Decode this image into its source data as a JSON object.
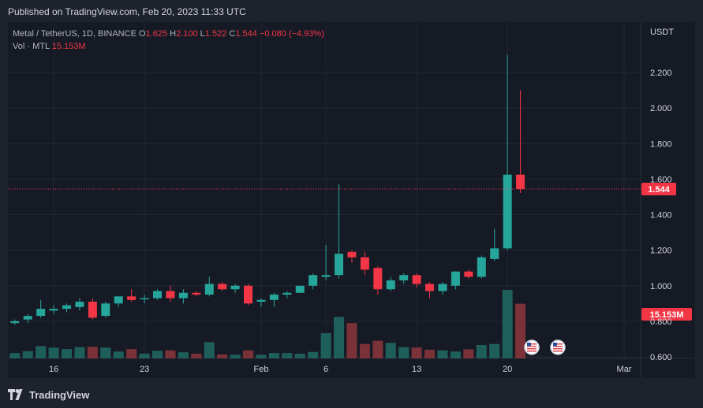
{
  "header": {
    "published_text": "Published on TradingView.com, Feb 20, 2023 11:33 UTC"
  },
  "legend": {
    "title": "Metal / TetherUS, 1D, BINANCE",
    "open_label": "O",
    "open": "1.625",
    "high_label": "H",
    "high": "2.100",
    "low_label": "L",
    "low": "1.522",
    "close_label": "C",
    "close": "1.544",
    "change": "−0.080 (−4.93%)",
    "vol_label": "Vol · MTL",
    "vol_value": "15.153M"
  },
  "footer": {
    "brand": "TradingView"
  },
  "colors": {
    "up": "#26a69a",
    "down": "#f23645",
    "up_vol": "#1f5f5b",
    "down_vol": "#7a3238",
    "grid": "#232733",
    "axis_text": "#d1d4dc"
  },
  "chart_data": {
    "type": "candlestick",
    "symbol": "Metal / TetherUS",
    "interval": "1D",
    "exchange": "BINANCE",
    "currency": "USDT",
    "ylim": [
      0.6,
      2.35
    ],
    "y_ticks": [
      "2.200",
      "2.000",
      "1.800",
      "1.600",
      "1.400",
      "1.200",
      "1.000",
      "0.800",
      "0.600"
    ],
    "x_ticks": [
      {
        "label": "16",
        "index": 3
      },
      {
        "label": "23",
        "index": 10
      },
      {
        "label": "Feb",
        "index": 19
      },
      {
        "label": "6",
        "index": 24
      },
      {
        "label": "13",
        "index": 31
      },
      {
        "label": "20",
        "index": 38
      },
      {
        "label": "Mar",
        "index": 47
      }
    ],
    "last_price": "1.544",
    "last_volume": "15.153M",
    "volume_max": 19.0,
    "candles": [
      {
        "o": 0.79,
        "h": 0.81,
        "l": 0.78,
        "c": 0.8,
        "v": 1.5
      },
      {
        "o": 0.81,
        "h": 0.84,
        "l": 0.79,
        "c": 0.83,
        "v": 2.0
      },
      {
        "o": 0.83,
        "h": 0.92,
        "l": 0.82,
        "c": 0.87,
        "v": 3.4
      },
      {
        "o": 0.86,
        "h": 0.89,
        "l": 0.84,
        "c": 0.87,
        "v": 3.0
      },
      {
        "o": 0.87,
        "h": 0.9,
        "l": 0.85,
        "c": 0.89,
        "v": 2.6
      },
      {
        "o": 0.88,
        "h": 0.93,
        "l": 0.86,
        "c": 0.91,
        "v": 3.1
      },
      {
        "o": 0.91,
        "h": 0.93,
        "l": 0.81,
        "c": 0.82,
        "v": 3.2
      },
      {
        "o": 0.83,
        "h": 0.91,
        "l": 0.82,
        "c": 0.9,
        "v": 3.0
      },
      {
        "o": 0.9,
        "h": 0.94,
        "l": 0.88,
        "c": 0.94,
        "v": 1.9
      },
      {
        "o": 0.94,
        "h": 0.98,
        "l": 0.91,
        "c": 0.92,
        "v": 2.6
      },
      {
        "o": 0.93,
        "h": 0.95,
        "l": 0.9,
        "c": 0.93,
        "v": 1.3
      },
      {
        "o": 0.93,
        "h": 0.98,
        "l": 0.92,
        "c": 0.97,
        "v": 2.1
      },
      {
        "o": 0.97,
        "h": 1.0,
        "l": 0.91,
        "c": 0.93,
        "v": 2.2
      },
      {
        "o": 0.93,
        "h": 0.98,
        "l": 0.9,
        "c": 0.96,
        "v": 1.7
      },
      {
        "o": 0.96,
        "h": 0.97,
        "l": 0.94,
        "c": 0.95,
        "v": 1.3
      },
      {
        "o": 0.95,
        "h": 1.05,
        "l": 0.94,
        "c": 1.01,
        "v": 4.5
      },
      {
        "o": 1.01,
        "h": 1.02,
        "l": 0.97,
        "c": 0.98,
        "v": 1.1
      },
      {
        "o": 0.98,
        "h": 1.01,
        "l": 0.96,
        "c": 1.0,
        "v": 1.0
      },
      {
        "o": 1.0,
        "h": 1.01,
        "l": 0.89,
        "c": 0.9,
        "v": 2.2
      },
      {
        "o": 0.91,
        "h": 0.93,
        "l": 0.88,
        "c": 0.92,
        "v": 1.0
      },
      {
        "o": 0.92,
        "h": 0.96,
        "l": 0.88,
        "c": 0.95,
        "v": 1.5
      },
      {
        "o": 0.95,
        "h": 0.97,
        "l": 0.93,
        "c": 0.96,
        "v": 1.5
      },
      {
        "o": 0.96,
        "h": 1.0,
        "l": 0.96,
        "c": 1.0,
        "v": 1.3
      },
      {
        "o": 1.0,
        "h": 1.07,
        "l": 0.98,
        "c": 1.06,
        "v": 1.8
      },
      {
        "o": 1.05,
        "h": 1.23,
        "l": 1.03,
        "c": 1.06,
        "v": 7.0
      },
      {
        "o": 1.06,
        "h": 1.57,
        "l": 1.04,
        "c": 1.18,
        "v": 11.5
      },
      {
        "o": 1.19,
        "h": 1.2,
        "l": 1.13,
        "c": 1.16,
        "v": 9.8
      },
      {
        "o": 1.16,
        "h": 1.19,
        "l": 1.06,
        "c": 1.09,
        "v": 4.0
      },
      {
        "o": 1.1,
        "h": 1.11,
        "l": 0.95,
        "c": 0.98,
        "v": 4.9
      },
      {
        "o": 0.98,
        "h": 1.05,
        "l": 0.97,
        "c": 1.03,
        "v": 4.3
      },
      {
        "o": 1.03,
        "h": 1.07,
        "l": 1.01,
        "c": 1.06,
        "v": 3.1
      },
      {
        "o": 1.06,
        "h": 1.07,
        "l": 0.99,
        "c": 1.01,
        "v": 3.0
      },
      {
        "o": 1.01,
        "h": 1.02,
        "l": 0.93,
        "c": 0.97,
        "v": 2.4
      },
      {
        "o": 0.97,
        "h": 1.02,
        "l": 0.95,
        "c": 1.01,
        "v": 2.2
      },
      {
        "o": 1.0,
        "h": 1.08,
        "l": 0.98,
        "c": 1.08,
        "v": 1.9
      },
      {
        "o": 1.08,
        "h": 1.09,
        "l": 1.04,
        "c": 1.05,
        "v": 2.5
      },
      {
        "o": 1.05,
        "h": 1.17,
        "l": 1.04,
        "c": 1.16,
        "v": 3.7
      },
      {
        "o": 1.15,
        "h": 1.32,
        "l": 1.14,
        "c": 1.21,
        "v": 4.0
      },
      {
        "o": 1.21,
        "h": 2.3,
        "l": 1.2,
        "c": 1.625,
        "v": 19.0
      },
      {
        "o": 1.625,
        "h": 2.1,
        "l": 1.522,
        "c": 1.544,
        "v": 15.153
      }
    ]
  }
}
